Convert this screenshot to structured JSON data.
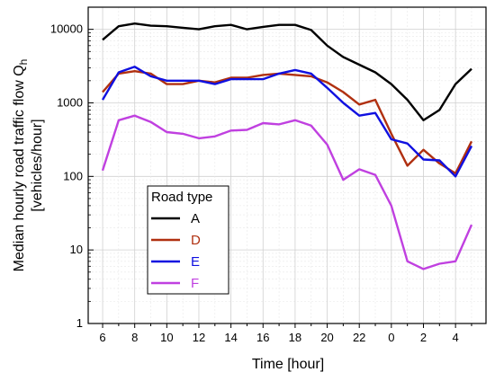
{
  "chart_data": {
    "type": "line",
    "xlabel": "Time [hour]",
    "ylabel_line1": "Median hourly road traffic flow Q",
    "ylabel_subscript": "h",
    "ylabel_line2": "[vehicles/hour]",
    "yscale": "log",
    "ylim": [
      1,
      20000
    ],
    "x_ticks": [
      "6",
      "8",
      "10",
      "12",
      "14",
      "16",
      "18",
      "20",
      "22",
      "0",
      "2",
      "4"
    ],
    "y_ticks": [
      "1",
      "10",
      "100",
      "1000",
      "10000"
    ],
    "grid": true,
    "legend": {
      "title": "Road type",
      "position": "lower-left"
    },
    "hours": [
      6,
      7,
      8,
      9,
      10,
      11,
      12,
      13,
      14,
      15,
      16,
      17,
      18,
      19,
      20,
      21,
      22,
      23,
      0,
      1,
      2,
      3,
      4,
      5
    ],
    "series": [
      {
        "name": "A",
        "color": "#000000",
        "values": [
          7200,
          11000,
          12000,
          11200,
          11000,
          10500,
          10000,
          11000,
          11500,
          10000,
          10800,
          11500,
          11500,
          9800,
          6000,
          4200,
          3300,
          2600,
          1800,
          1100,
          580,
          800,
          1800,
          2900
        ]
      },
      {
        "name": "D",
        "color": "#b03010",
        "values": [
          1400,
          2500,
          2700,
          2500,
          1800,
          1800,
          2000,
          1900,
          2200,
          2200,
          2400,
          2500,
          2400,
          2300,
          1900,
          1400,
          950,
          1100,
          380,
          140,
          230,
          150,
          110,
          300
        ]
      },
      {
        "name": "E",
        "color": "#1010e0",
        "values": [
          1100,
          2600,
          3100,
          2300,
          2000,
          2000,
          2000,
          1800,
          2100,
          2100,
          2100,
          2500,
          2800,
          2500,
          1600,
          1000,
          670,
          730,
          320,
          280,
          170,
          165,
          100,
          260
        ]
      },
      {
        "name": "F",
        "color": "#c040e0",
        "values": [
          120,
          580,
          670,
          550,
          400,
          380,
          330,
          350,
          420,
          430,
          530,
          510,
          580,
          490,
          270,
          90,
          125,
          105,
          40,
          7,
          5.5,
          6.5,
          7,
          22
        ]
      }
    ]
  }
}
